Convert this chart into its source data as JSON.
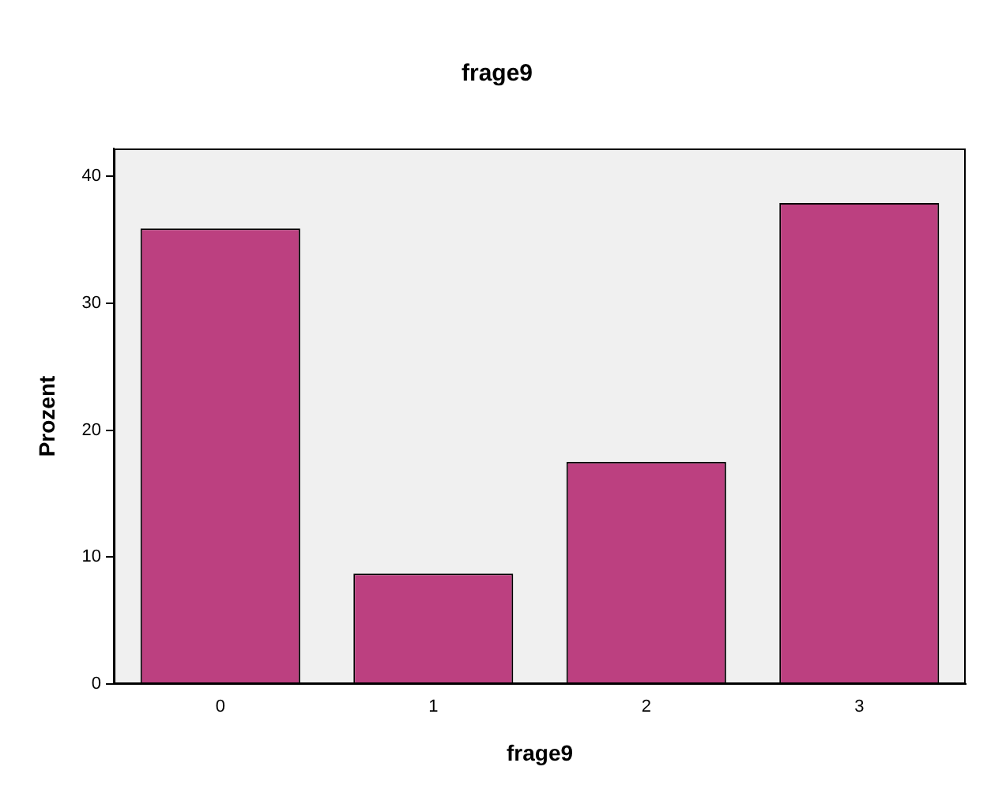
{
  "chart_data": {
    "type": "bar",
    "title": "frage9",
    "xlabel": "frage9",
    "ylabel": "Prozent",
    "categories": [
      "0",
      "1",
      "2",
      "3"
    ],
    "values": [
      35.9,
      8.7,
      17.5,
      37.9
    ],
    "color": "#bc4080",
    "ylim": [
      0,
      42.2
    ],
    "yticks": [
      0,
      10,
      20,
      30,
      40
    ],
    "grid": false,
    "legend": false
  }
}
